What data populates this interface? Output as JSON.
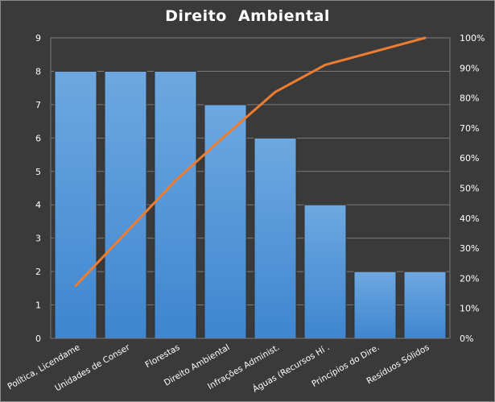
{
  "chart_data": {
    "type": "bar",
    "title": "Direito  Ambiental",
    "categories": [
      "Política, Licendame",
      "Unidades de Conser",
      "Florestas",
      "Direito Ambiental",
      "Infrações Administ.",
      "Águas (Recursos Hí .",
      "Princípios do Dire.",
      "Resíduos Sólidos"
    ],
    "series": [
      {
        "type": "bar",
        "values": [
          8,
          8,
          8,
          7,
          6,
          4,
          2,
          2
        ]
      },
      {
        "type": "line",
        "axis": "secondary",
        "values": [
          17.5,
          35,
          52.5,
          67.5,
          82,
          91,
          95.5,
          100
        ]
      }
    ],
    "ylim": [
      0,
      9
    ],
    "y_ticks": [
      "0",
      "1",
      "2",
      "3",
      "4",
      "5",
      "6",
      "7",
      "8",
      "9"
    ],
    "y2lim": [
      0,
      100
    ],
    "y2_ticks": [
      "0%",
      "10%",
      "20%",
      "30%",
      "40%",
      "50%",
      "60%",
      "70%",
      "80%",
      "90%",
      "100%"
    ],
    "grid": true,
    "colors": {
      "background": "#3a3a3a",
      "bar": "#5b9bd5",
      "line": "#ed7d31",
      "grid": "#7a7a7a"
    }
  }
}
